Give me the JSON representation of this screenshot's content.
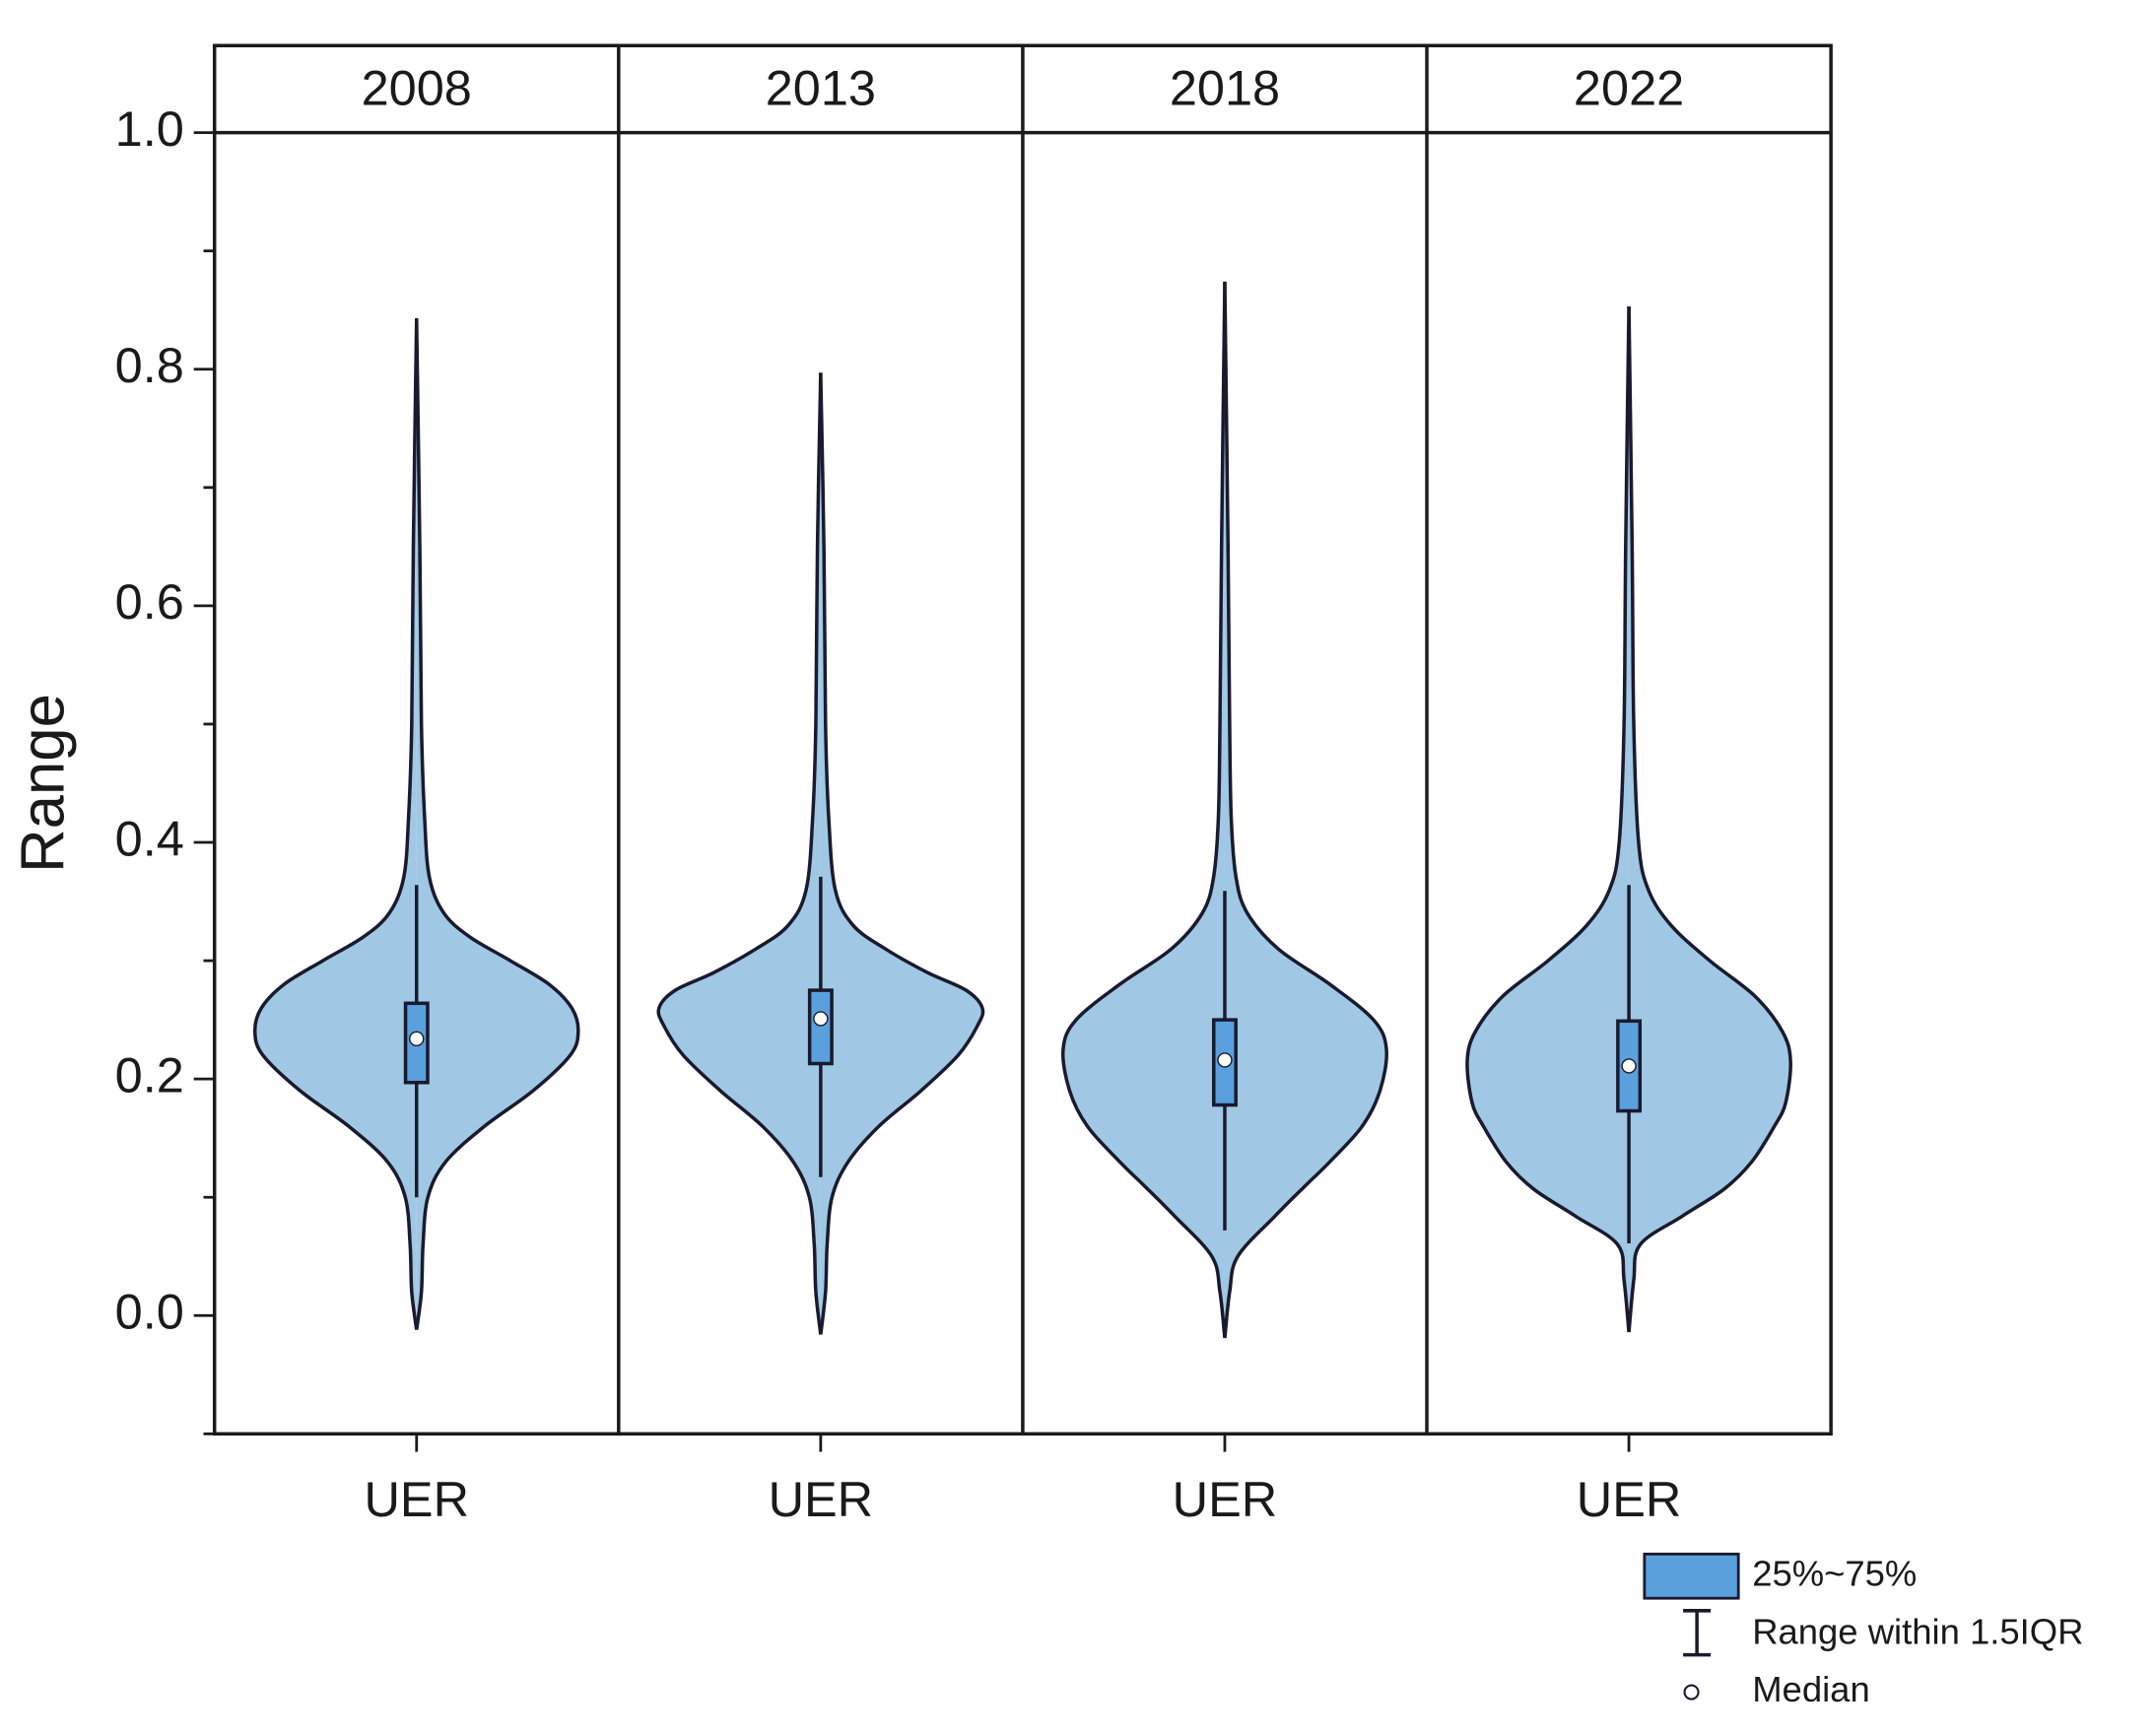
{
  "chart_data": {
    "type": "violin",
    "y_label": "Range",
    "ylim": [
      -0.1,
      1.0
    ],
    "yticks": [
      {
        "value": 0,
        "label": "0.0"
      },
      0.2,
      0.4,
      0.6,
      0.8,
      {
        "value": 1,
        "label": "1.0"
      }
    ],
    "minor_yticks": [
      -0.1,
      0.1,
      0.3,
      0.5,
      0.7,
      0.9
    ],
    "violin_color": "#a0c8e4",
    "box_color": "#5aa0dc",
    "legend": [
      "25%~75%",
      "Range within 1.5IQR",
      "Median"
    ],
    "panels": [
      {
        "title": "2008",
        "categories": [
          "UER"
        ],
        "q1": 0.197,
        "median": 0.234,
        "q3": 0.264,
        "whisker_low": 0.1,
        "whisker_high": 0.364,
        "density": {
          "y": [
            -0.012,
            0.02,
            0.06,
            0.1,
            0.13,
            0.16,
            0.19,
            0.22,
            0.24,
            0.26,
            0.28,
            0.3,
            0.32,
            0.34,
            0.37,
            0.42,
            0.5,
            0.65,
            0.843
          ],
          "width": [
            0,
            0.03,
            0.04,
            0.07,
            0.18,
            0.42,
            0.72,
            0.95,
            1.0,
            0.96,
            0.82,
            0.58,
            0.33,
            0.17,
            0.08,
            0.05,
            0.03,
            0.02,
            0
          ]
        }
      },
      {
        "title": "2013",
        "categories": [
          "UER"
        ],
        "q1": 0.213,
        "median": 0.251,
        "q3": 0.275,
        "whisker_low": 0.117,
        "whisker_high": 0.371,
        "density": {
          "y": [
            -0.016,
            0.02,
            0.06,
            0.1,
            0.13,
            0.16,
            0.19,
            0.22,
            0.245,
            0.26,
            0.275,
            0.29,
            0.31,
            0.33,
            0.36,
            0.42,
            0.5,
            0.65,
            0.797
          ],
          "width": [
            0,
            0.03,
            0.04,
            0.07,
            0.17,
            0.36,
            0.62,
            0.85,
            0.97,
            1.0,
            0.9,
            0.66,
            0.4,
            0.2,
            0.09,
            0.05,
            0.03,
            0.02,
            0
          ]
        }
      },
      {
        "title": "2018",
        "categories": [
          "UER"
        ],
        "q1": 0.178,
        "median": 0.216,
        "q3": 0.25,
        "whisker_low": 0.072,
        "whisker_high": 0.359,
        "density": {
          "y": [
            -0.019,
            0.02,
            0.05,
            0.084,
            0.11,
            0.13,
            0.16,
            0.19,
            0.225,
            0.25,
            0.28,
            0.31,
            0.34,
            0.37,
            0.42,
            0.5,
            0.65,
            0.874
          ],
          "width": [
            0,
            0.03,
            0.08,
            0.31,
            0.5,
            0.65,
            0.85,
            0.96,
            1.0,
            0.92,
            0.65,
            0.33,
            0.14,
            0.07,
            0.04,
            0.03,
            0.02,
            0
          ]
        }
      },
      {
        "title": "2022",
        "categories": [
          "UER"
        ],
        "q1": 0.173,
        "median": 0.211,
        "q3": 0.249,
        "whisker_low": 0.061,
        "whisker_high": 0.364,
        "density": {
          "y": [
            -0.014,
            0.03,
            0.06,
            0.084,
            0.107,
            0.13,
            0.16,
            0.18,
            0.215,
            0.24,
            0.27,
            0.3,
            0.33,
            0.36,
            0.4,
            0.5,
            0.65,
            0.853
          ],
          "width": [
            0,
            0.03,
            0.07,
            0.33,
            0.59,
            0.76,
            0.9,
            0.97,
            1.0,
            0.95,
            0.78,
            0.5,
            0.26,
            0.12,
            0.06,
            0.03,
            0.02,
            0
          ]
        }
      }
    ]
  }
}
